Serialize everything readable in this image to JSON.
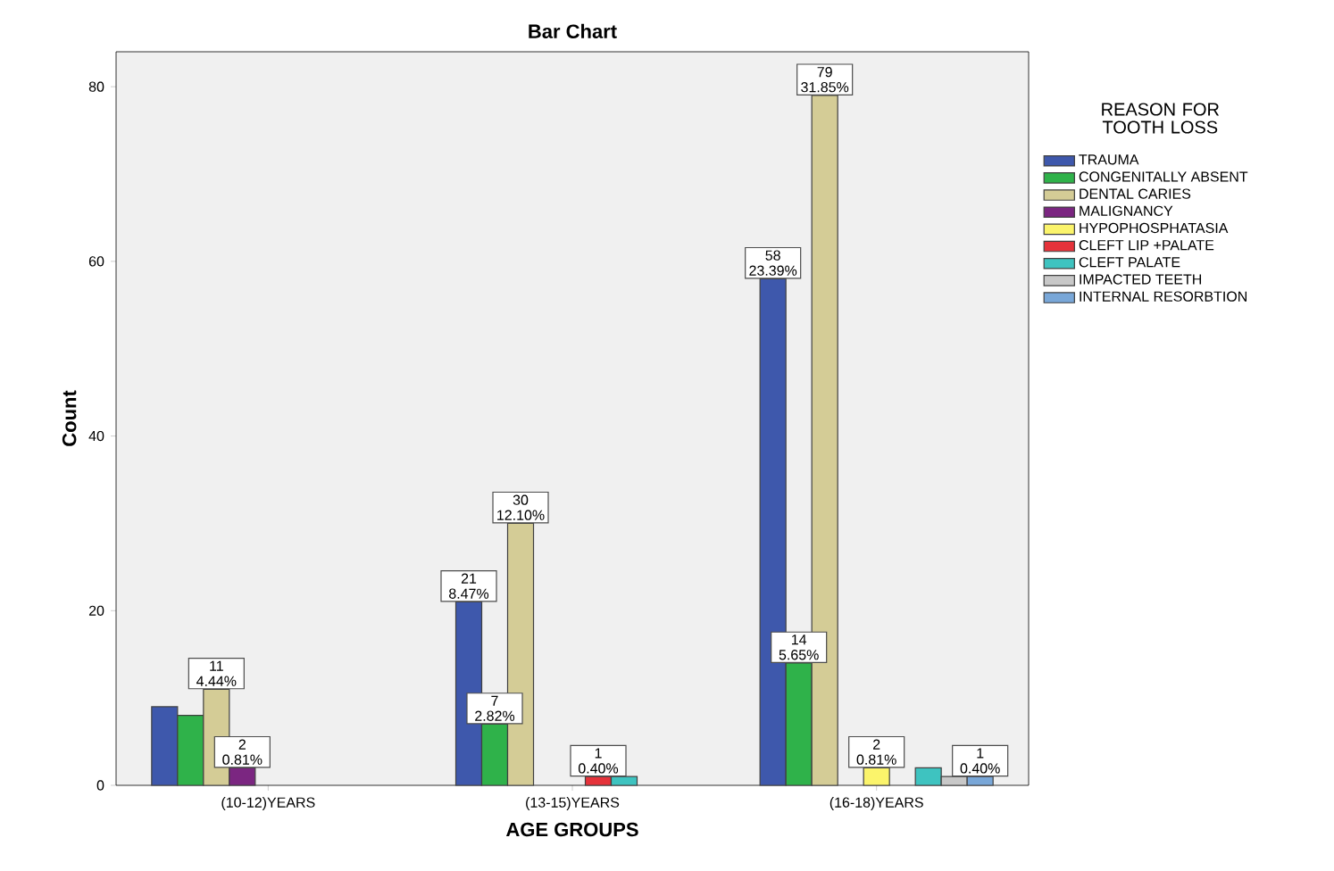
{
  "chart_data": {
    "type": "bar",
    "title": "Bar Chart",
    "xlabel": "AGE GROUPS",
    "ylabel": "Count",
    "legend_title": "REASON FOR TOOTH LOSS",
    "categories": [
      "(10-12)YEARS",
      "(13-15)YEARS",
      "(16-18)YEARS"
    ],
    "series": [
      {
        "name": "TRAUMA",
        "color": "#3e58ac",
        "values": [
          9,
          21,
          58
        ],
        "value_labels": [
          null,
          "21 8.47%",
          "58 23.39%"
        ]
      },
      {
        "name": "CONGENITALLY ABSENT",
        "color": "#2fb24a",
        "values": [
          8,
          7,
          14
        ],
        "value_labels": [
          null,
          "7 2.82%",
          "14 5.65%"
        ]
      },
      {
        "name": "DENTAL CARIES",
        "color": "#d4cc96",
        "values": [
          11,
          30,
          79
        ],
        "value_labels": [
          "11 4.44%",
          "30 12.10%",
          "79 31.85%"
        ]
      },
      {
        "name": "MALIGNANCY",
        "color": "#7b2681",
        "values": [
          2,
          null,
          null
        ],
        "value_labels": [
          "2 0.81%",
          null,
          null
        ]
      },
      {
        "name": "HYPOPHOSPHATASIA",
        "color": "#fbf46b",
        "values": [
          null,
          null,
          2
        ],
        "value_labels": [
          null,
          null,
          "2 0.81%"
        ]
      },
      {
        "name": "CLEFT LIP +PALATE",
        "color": "#e5323a",
        "values": [
          null,
          1,
          null
        ],
        "value_labels": [
          null,
          "1 0.40%",
          null
        ]
      },
      {
        "name": "CLEFT PALATE",
        "color": "#3ec3c0",
        "values": [
          null,
          1,
          2
        ]
      },
      {
        "name": "IMPACTED TEETH",
        "color": "#c8c8c8",
        "values": [
          null,
          null,
          1
        ]
      },
      {
        "name": "INTERNAL RESORBTION",
        "color": "#79a7d8",
        "values": [
          null,
          null,
          1
        ],
        "value_labels": [
          null,
          null,
          "1 0.40%"
        ]
      }
    ],
    "ylim": [
      0,
      84
    ],
    "yticks": [
      0,
      20,
      40,
      60,
      80
    ],
    "legend": "right"
  }
}
